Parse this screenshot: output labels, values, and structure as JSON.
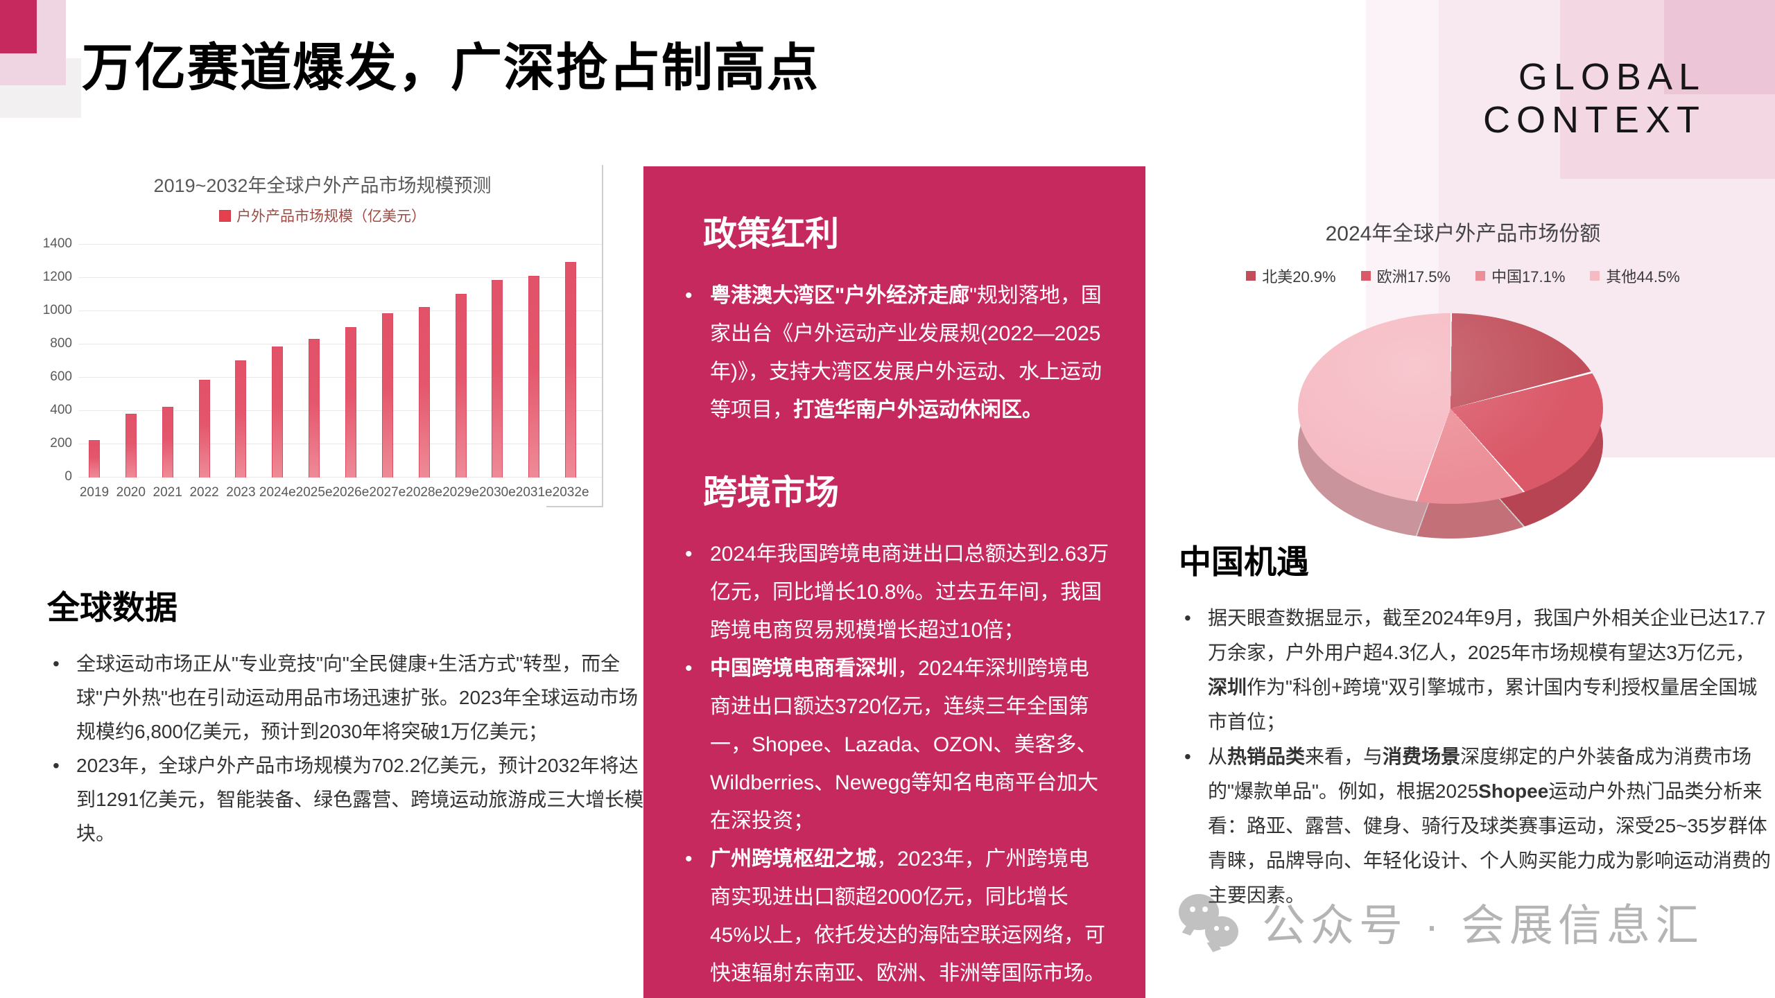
{
  "header": {
    "title": "万亿赛道爆发，广深抢占制高点",
    "eyebrow": "GLOBAL CONTEXT"
  },
  "chart_data": [
    {
      "type": "bar",
      "title": "2019~2032年全球户外产品市场规模预测",
      "legend": [
        "户外产品市场规模（亿美元）"
      ],
      "legend_position": "top",
      "grid": true,
      "categories": [
        "2019",
        "2020",
        "2021",
        "2022",
        "2023",
        "2024e",
        "2025e",
        "2026e",
        "2027e",
        "2028e",
        "2029e",
        "2030e",
        "2031e",
        "2032e"
      ],
      "values": [
        220,
        380,
        420,
        585,
        702,
        785,
        830,
        900,
        985,
        1020,
        1100,
        1185,
        1210,
        1291
      ],
      "xlabel": "",
      "ylabel": "",
      "ylim": [
        0,
        1400
      ],
      "yticks": [
        0,
        200,
        400,
        600,
        800,
        1000,
        1200,
        1400
      ],
      "bar_color": "#e4566b"
    },
    {
      "type": "pie",
      "title": "2024年全球户外产品市场份额",
      "legend_position": "top",
      "slices": [
        {
          "label": "北美",
          "value": 20.9,
          "color": "#c14f5b"
        },
        {
          "label": "欧洲",
          "value": 17.5,
          "color": "#da5868"
        },
        {
          "label": "中国",
          "value": 17.1,
          "color": "#ec8e97"
        },
        {
          "label": "其他",
          "value": 44.5,
          "color": "#f6bac3"
        }
      ]
    }
  ],
  "sections": {
    "global": {
      "heading": "全球数据",
      "bullets": [
        [
          {
            "t": "全球运动市场正从\"专业竞技\"向\"全民健康+生活方式\"转型，而全球\"户外热\"也在引动运动用品市场迅速扩张。2023年全球运动市场规模约6,800亿美元，预计到2030年将突破1万亿美元；"
          }
        ],
        [
          {
            "t": "2023年，全球户外产品市场规模为702.2亿美元，预计2032年将达到1291亿美元，智能装备、绿色露营、跨境运动旅游成三大增长模块。"
          }
        ]
      ]
    },
    "policy": {
      "heading": "政策红利",
      "bullets": [
        [
          {
            "b": true,
            "t": "粤港澳大湾区\"户外经济走廊"
          },
          {
            "t": "\"规划落地，国家出台《户外运动产业发展规(2022—2025年)》，支持大湾区发展户外运动、水上运动等项目，"
          },
          {
            "b": true,
            "t": "打造华南户外运动休闲区。"
          }
        ]
      ]
    },
    "crossborder": {
      "heading": "跨境市场",
      "bullets": [
        [
          {
            "t": "2024年我国跨境电商进出口总额达到2.63万亿元，同比增长10.8%。过去五年间，我国跨境电商贸易规模增长超过10倍；"
          }
        ],
        [
          {
            "b": true,
            "t": "中国跨境电商看深圳"
          },
          {
            "t": "，2024年深圳跨境电商进出口额达3720亿元，连续三年全国第一，Shopee、Lazada、OZON、美客多、Wildberries、Newegg等知名电商平台加大在深投资；"
          }
        ],
        [
          {
            "b": true,
            "t": "广州跨境枢纽之城"
          },
          {
            "t": "，2023年，广州跨境电商实现进出口额超2000亿元，同比增长45%以上，依托发达的海陆空联运网络，可快速辐射东南亚、欧洲、非洲等国际市场。"
          }
        ]
      ]
    },
    "china": {
      "heading": "中国机遇",
      "bullets": [
        [
          {
            "t": " 据天眼查数据显示，截至2024年9月，我国户外相关企业已达17.7万余家，户外用户超4.3亿人，2025年市场规模有望达3万亿元，"
          },
          {
            "b": true,
            "t": "深圳"
          },
          {
            "t": "作为\"科创+跨境\"双引擎城市，累计国内专利授权量居全国城市首位；"
          }
        ],
        [
          {
            "t": "从"
          },
          {
            "b": true,
            "t": "热销品类"
          },
          {
            "t": "来看，与"
          },
          {
            "b": true,
            "t": "消费场景"
          },
          {
            "t": "深度绑定的户外装备成为消费市场的\"爆款单品\"。例如，根据2025"
          },
          {
            "b": true,
            "t": "Shopee"
          },
          {
            "t": "运动户外热门品类分析来看：路亚、露营、健身、骑行及球类赛事运动，深受25~35岁群体青睐，品牌导向、年轻化设计、个人购买能力成为影响运动消费的主要因素。"
          }
        ]
      ]
    }
  },
  "watermark": {
    "icon": "wechat-icon",
    "text": "公众号 · 会展信息汇"
  },
  "colors": {
    "accent": "#c5295d",
    "bar": "#e4566b",
    "frame": "#cfcfcf"
  }
}
